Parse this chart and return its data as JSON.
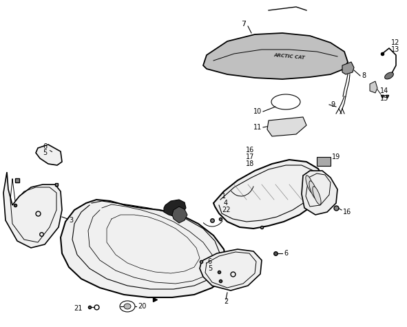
{
  "background_color": "#ffffff",
  "line_color": "#000000",
  "fig_width": 5.91,
  "fig_height": 4.75,
  "dpi": 100,
  "seat_fill": "#c0c0c0",
  "part_fill": "#f8f8f8",
  "gray_fill": "#888888"
}
